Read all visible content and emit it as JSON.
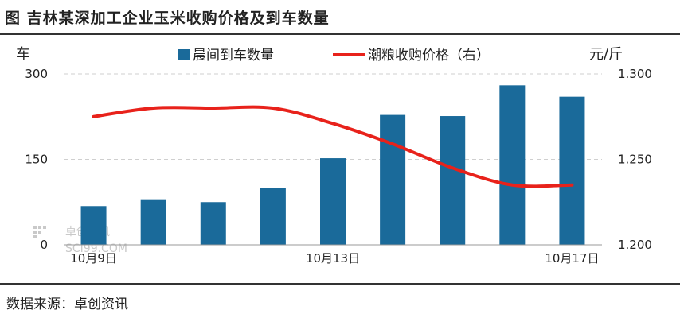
{
  "header": {
    "title": "图  吉林某深加工企业玉米收购价格及到车数量"
  },
  "footer": {
    "source": "数据来源：卓创资讯"
  },
  "watermark": {
    "brand": "卓创资讯",
    "site": "SCI99.COM"
  },
  "colors": {
    "bar": "#1a6a9a",
    "line": "#e8221b",
    "grid": "#cfcfcf"
  },
  "chart_data": {
    "type": "bar",
    "x": [
      "10月9日",
      "10月10日",
      "10月11日",
      "10月12日",
      "10月13日",
      "10月14日",
      "10月15日",
      "10月16日",
      "10月17日"
    ],
    "x_tick_labels": [
      "10月9日",
      "10月13日",
      "10月17日"
    ],
    "y_left": {
      "unit": "车",
      "ylim": [
        0,
        300
      ],
      "ticks": [
        "0",
        "150",
        "300"
      ]
    },
    "y_right": {
      "unit": "元/斤",
      "ylim": [
        1.2,
        1.3
      ],
      "ticks": [
        "1.200",
        "1.250",
        "1.300"
      ]
    },
    "grid": true,
    "legend_position": "top",
    "series": [
      {
        "name": "晨间到车数量",
        "type": "bar",
        "axis": "left",
        "values": [
          68,
          80,
          75,
          100,
          152,
          228,
          226,
          280,
          260
        ]
      },
      {
        "name": "潮粮收购价格（右）",
        "type": "line",
        "axis": "right",
        "values": [
          1.275,
          1.28,
          1.28,
          1.28,
          1.271,
          1.259,
          1.245,
          1.235,
          1.235
        ]
      }
    ]
  }
}
